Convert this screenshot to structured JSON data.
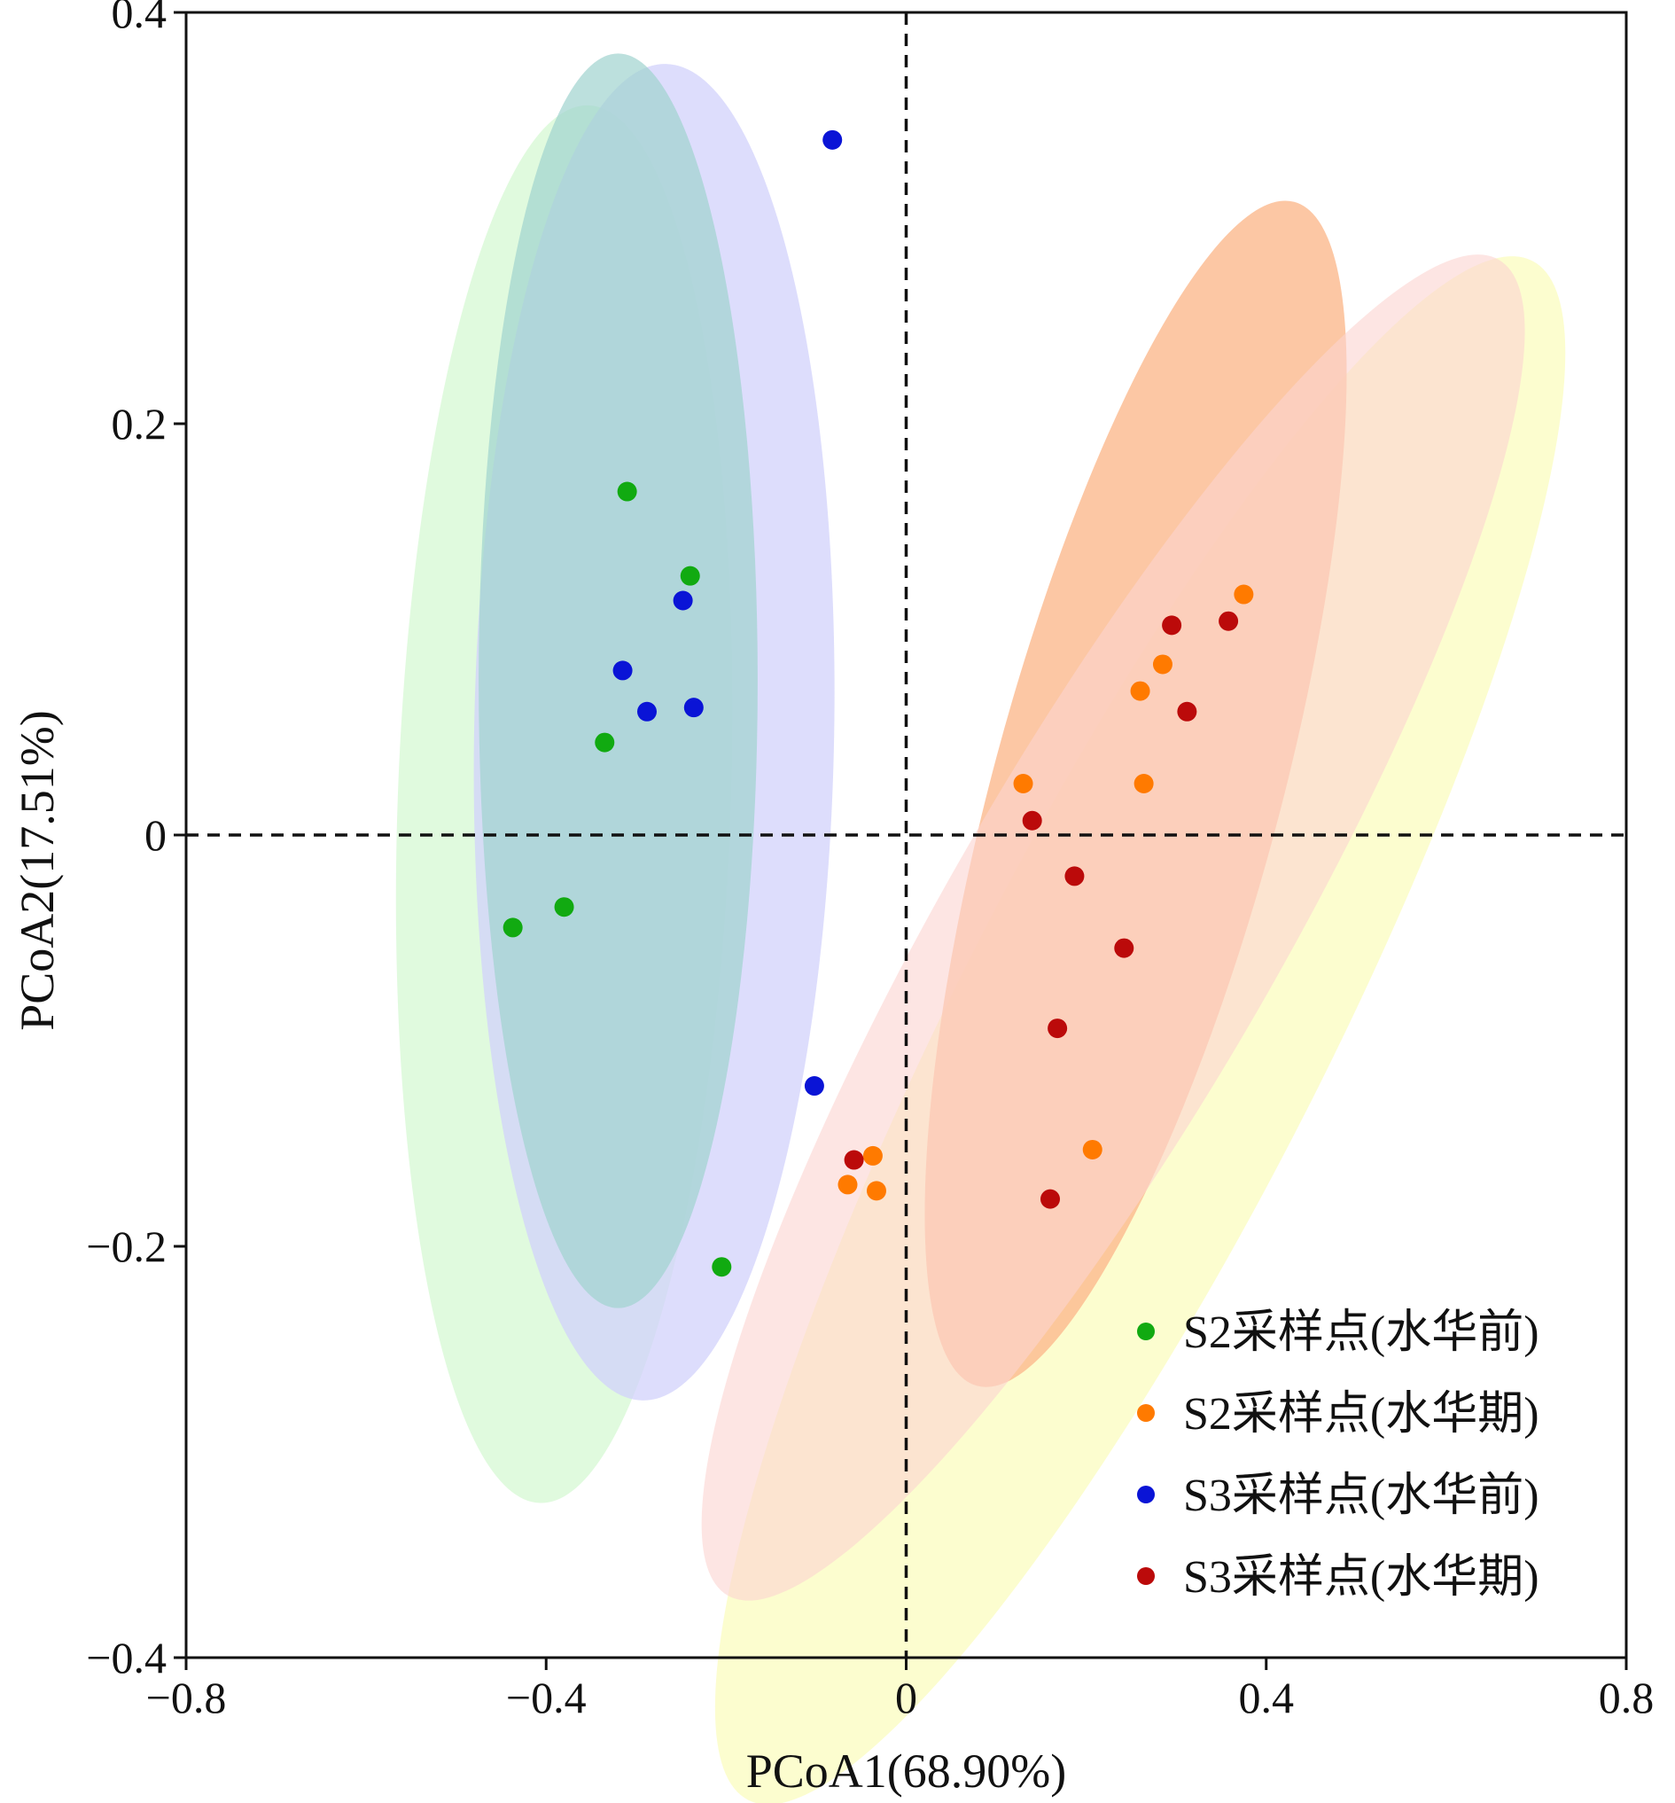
{
  "chart_data": {
    "type": "scatter",
    "xlabel": "PCoA1(68.90%)",
    "ylabel": "PCoA2(17.51%)",
    "xlim": [
      -0.8,
      0.8
    ],
    "ylim": [
      -0.4,
      0.4
    ],
    "xticks": [
      -0.8,
      -0.4,
      0,
      0.4,
      0.8
    ],
    "yticks": [
      -0.4,
      -0.2,
      0,
      0.2,
      0.4
    ],
    "xtick_labels": [
      "−0.8",
      "−0.4",
      "0",
      "0.4",
      "0.8"
    ],
    "ytick_labels": [
      "−0.4",
      "−0.2",
      "0",
      "0.2",
      "0.4"
    ],
    "reference_lines": {
      "x": 0,
      "y": 0,
      "style": "dashed"
    },
    "legend_position": "bottom-right",
    "series": [
      {
        "name": "S2采样点(水华前)",
        "color": "#11aa11",
        "fill": "#ccf7c8",
        "ellipse": {
          "cx": -0.38,
          "cy": 0.015,
          "rx": 0.185,
          "ry": 0.34,
          "angle": 2
        },
        "points": [
          {
            "x": -0.31,
            "y": 0.167
          },
          {
            "x": -0.24,
            "y": 0.126
          },
          {
            "x": -0.335,
            "y": 0.045
          },
          {
            "x": -0.38,
            "y": -0.035
          },
          {
            "x": -0.437,
            "y": -0.045
          },
          {
            "x": -0.205,
            "y": -0.21
          }
        ]
      },
      {
        "name": "S2采样点(水华期)",
        "color": "#ff7a00",
        "fill": "#fbb98d",
        "ellipse": {
          "cx": 0.255,
          "cy": 0.02,
          "rx": 0.16,
          "ry": 0.298,
          "angle": 15
        },
        "points": [
          {
            "x": 0.375,
            "y": 0.117
          },
          {
            "x": 0.285,
            "y": 0.083
          },
          {
            "x": 0.26,
            "y": 0.07
          },
          {
            "x": 0.13,
            "y": 0.025
          },
          {
            "x": 0.264,
            "y": 0.025
          },
          {
            "x": 0.207,
            "y": -0.153
          },
          {
            "x": -0.037,
            "y": -0.156
          },
          {
            "x": -0.065,
            "y": -0.17
          },
          {
            "x": -0.033,
            "y": -0.173
          }
        ]
      },
      {
        "name": "S3采样点(水华前)",
        "color": "#0a14d6",
        "fill": "#d2d2fb",
        "ellipse": {
          "cx": -0.28,
          "cy": 0.05,
          "rx": 0.2,
          "ry": 0.325,
          "angle": 1
        },
        "points": [
          {
            "x": -0.082,
            "y": 0.338
          },
          {
            "x": -0.248,
            "y": 0.114
          },
          {
            "x": -0.315,
            "y": 0.08
          },
          {
            "x": -0.288,
            "y": 0.06
          },
          {
            "x": -0.236,
            "y": 0.062
          },
          {
            "x": -0.102,
            "y": -0.122
          }
        ]
      },
      {
        "name": "S3采样点(水华期)",
        "color": "#bb0a0a",
        "fill": "#fbd3d1",
        "ellipse": {
          "cx": 0.23,
          "cy": -0.045,
          "rx": 0.185,
          "ry": 0.375,
          "angle": 30
        },
        "points": [
          {
            "x": 0.295,
            "y": 0.102
          },
          {
            "x": 0.358,
            "y": 0.104
          },
          {
            "x": 0.312,
            "y": 0.06
          },
          {
            "x": 0.14,
            "y": 0.007
          },
          {
            "x": 0.187,
            "y": -0.02
          },
          {
            "x": 0.242,
            "y": -0.055
          },
          {
            "x": 0.168,
            "y": -0.094
          },
          {
            "x": -0.058,
            "y": -0.158
          },
          {
            "x": 0.16,
            "y": -0.177
          }
        ]
      }
    ]
  }
}
